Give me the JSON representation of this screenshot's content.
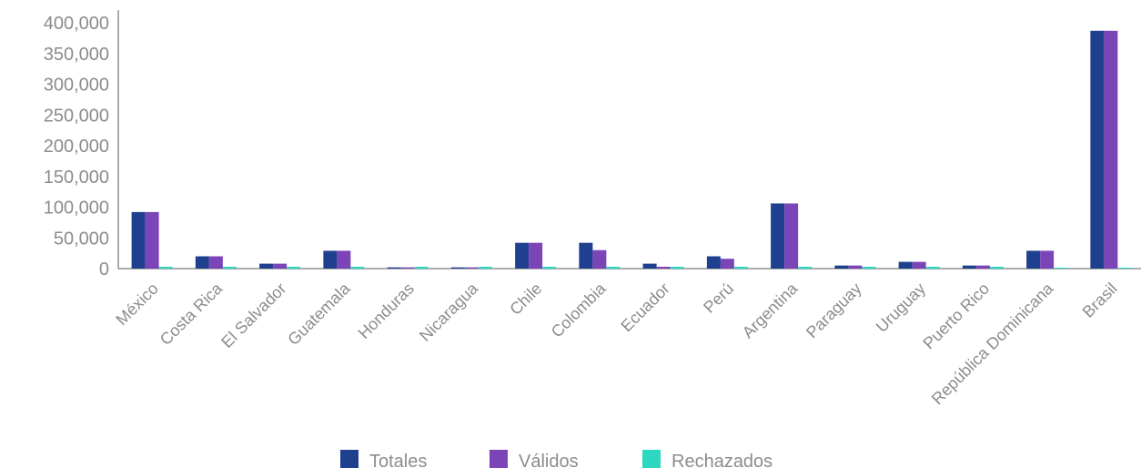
{
  "chart_data": {
    "type": "bar",
    "categories": [
      "México",
      "Costa Rica",
      "El Salvador",
      "Guatemala",
      "Honduras",
      "Nicaragua",
      "Chile",
      "Colombia",
      "Ecuador",
      "Perú",
      "Argentina",
      "Paraguay",
      "Uruguay",
      "Puerto Rico",
      "República Dominicana",
      "Brasil"
    ],
    "series": [
      {
        "name": "Totales",
        "color": "#1f3f8f",
        "values": [
          92000,
          20000,
          8000,
          29000,
          2000,
          2000,
          42000,
          42000,
          8000,
          20000,
          106000,
          5000,
          11000,
          5000,
          29000,
          387000
        ]
      },
      {
        "name": "Válidos",
        "color": "#7b45b8",
        "values": [
          92000,
          20000,
          8000,
          29000,
          2000,
          2000,
          42000,
          30000,
          3000,
          16000,
          106000,
          5000,
          11000,
          5000,
          29000,
          387000
        ]
      },
      {
        "name": "Rechazados",
        "color": "#2ed8c0",
        "values": [
          3000,
          3000,
          3000,
          3000,
          3000,
          3000,
          3000,
          3000,
          3000,
          3000,
          3000,
          3000,
          3000,
          3000,
          1500,
          1500
        ]
      }
    ],
    "ylim": [
      0,
      400000
    ],
    "yticks": [
      0,
      50000,
      100000,
      150000,
      200000,
      250000,
      300000,
      350000,
      400000
    ],
    "ytick_labels": [
      "0",
      "50,000",
      "100,000",
      "150,000",
      "200,000",
      "250,000",
      "300,000",
      "350,000",
      "400,000"
    ],
    "grid": false,
    "legend_position": "bottom-center"
  }
}
